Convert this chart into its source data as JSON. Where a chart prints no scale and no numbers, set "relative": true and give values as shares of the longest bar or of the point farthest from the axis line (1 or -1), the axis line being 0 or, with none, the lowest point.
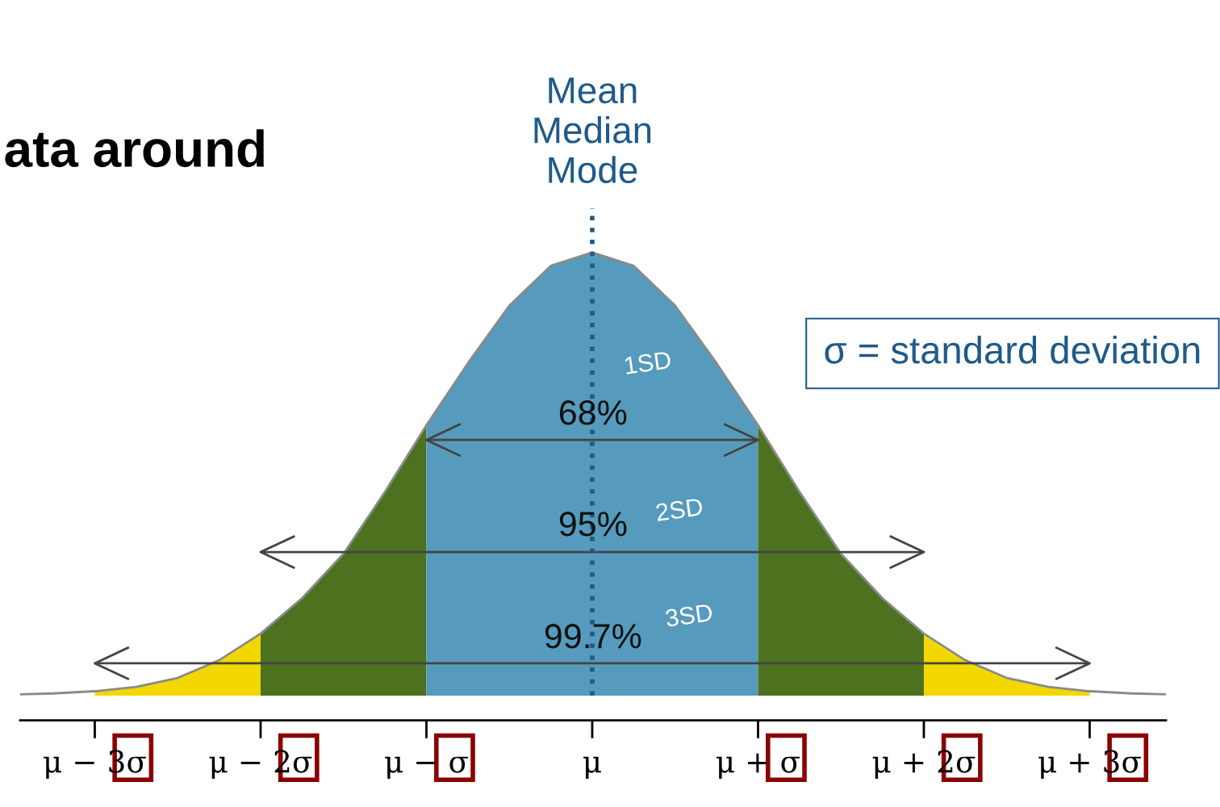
{
  "chart_data": {
    "type": "area",
    "title": "ata around",
    "relative": true,
    "xlim": [
      -3.45,
      3.46
    ],
    "xticks": [
      {
        "value": -3,
        "label": "μ − 3σ"
      },
      {
        "value": -2,
        "label": "μ − 2σ"
      },
      {
        "value": -1,
        "label": "μ − σ"
      },
      {
        "value": 0,
        "label": "μ"
      },
      {
        "value": 1,
        "label": "μ + σ"
      },
      {
        "value": 2,
        "label": "μ + 2σ"
      },
      {
        "value": 3,
        "label": "μ + 3σ"
      }
    ],
    "series": [
      {
        "type": "line",
        "color": "#8a8a8a",
        "x": [
          -3.45,
          -3.25,
          -3,
          -2.75,
          -2.5,
          -2.25,
          -2,
          -1.75,
          -1.5,
          -1.25,
          -1,
          -0.75,
          -0.5,
          -0.25,
          0,
          0.25,
          0.5,
          0.75,
          1,
          1.25,
          1.5,
          1.75,
          2,
          2.25,
          2.5,
          2.75,
          3,
          3.25,
          3.46
        ],
        "values": [
          0.003,
          0.005,
          0.01,
          0.02,
          0.04,
          0.08,
          0.14,
          0.22,
          0.32,
          0.46,
          0.61,
          0.75,
          0.88,
          0.97,
          1,
          0.97,
          0.88,
          0.75,
          0.61,
          0.46,
          0.32,
          0.22,
          0.14,
          0.08,
          0.04,
          0.02,
          0.01,
          0.005,
          0.003
        ]
      },
      {
        "color": "#f2d800",
        "x": [
          -3,
          -2.75,
          -2.5,
          -2.25,
          -2
        ],
        "values": [
          0.01,
          0.02,
          0.04,
          0.08,
          0.14
        ]
      },
      {
        "color": "#4c711f",
        "x": [
          -2,
          -1.75,
          -1.5,
          -1.25,
          -1
        ],
        "values": [
          0.14,
          0.22,
          0.32,
          0.46,
          0.61
        ]
      },
      {
        "color": "#569bbd",
        "x": [
          -1,
          -0.75,
          -0.5,
          -0.25,
          0,
          0.25,
          0.5,
          0.75,
          1
        ],
        "values": [
          0.61,
          0.75,
          0.88,
          0.97,
          1,
          0.97,
          0.88,
          0.75,
          0.61
        ]
      },
      {
        "color": "#4c711f",
        "x": [
          1,
          1.25,
          1.5,
          1.75,
          2
        ],
        "values": [
          0.61,
          0.46,
          0.32,
          0.22,
          0.14
        ]
      },
      {
        "color": "#f2d800",
        "x": [
          2,
          2.25,
          2.5,
          2.75,
          3
        ],
        "values": [
          0.14,
          0.08,
          0.04,
          0.02,
          0.01
        ]
      },
      {
        "type": "line",
        "color": "#444444",
        "x": [
          -1,
          1
        ],
        "values": [
          0.577,
          0.577
        ]
      },
      {
        "type": "line",
        "color": "#444444",
        "x": [
          -2,
          2
        ],
        "values": [
          0.324,
          0.324
        ]
      },
      {
        "type": "line",
        "color": "#444444",
        "x": [
          -3,
          3
        ],
        "values": [
          0.073,
          0.073
        ]
      }
    ],
    "ref_lines": [
      {
        "axis": "x",
        "value": 0,
        "label": "Mean\nMedian\nMode",
        "color": "#1f5a8a",
        "line_style": "dotted"
      }
    ],
    "annotations": [
      "68%",
      "95%",
      "99.7%",
      "1SD",
      "2SD",
      "3SD",
      "σ = standard deviation"
    ],
    "grid": false,
    "legend": false
  }
}
